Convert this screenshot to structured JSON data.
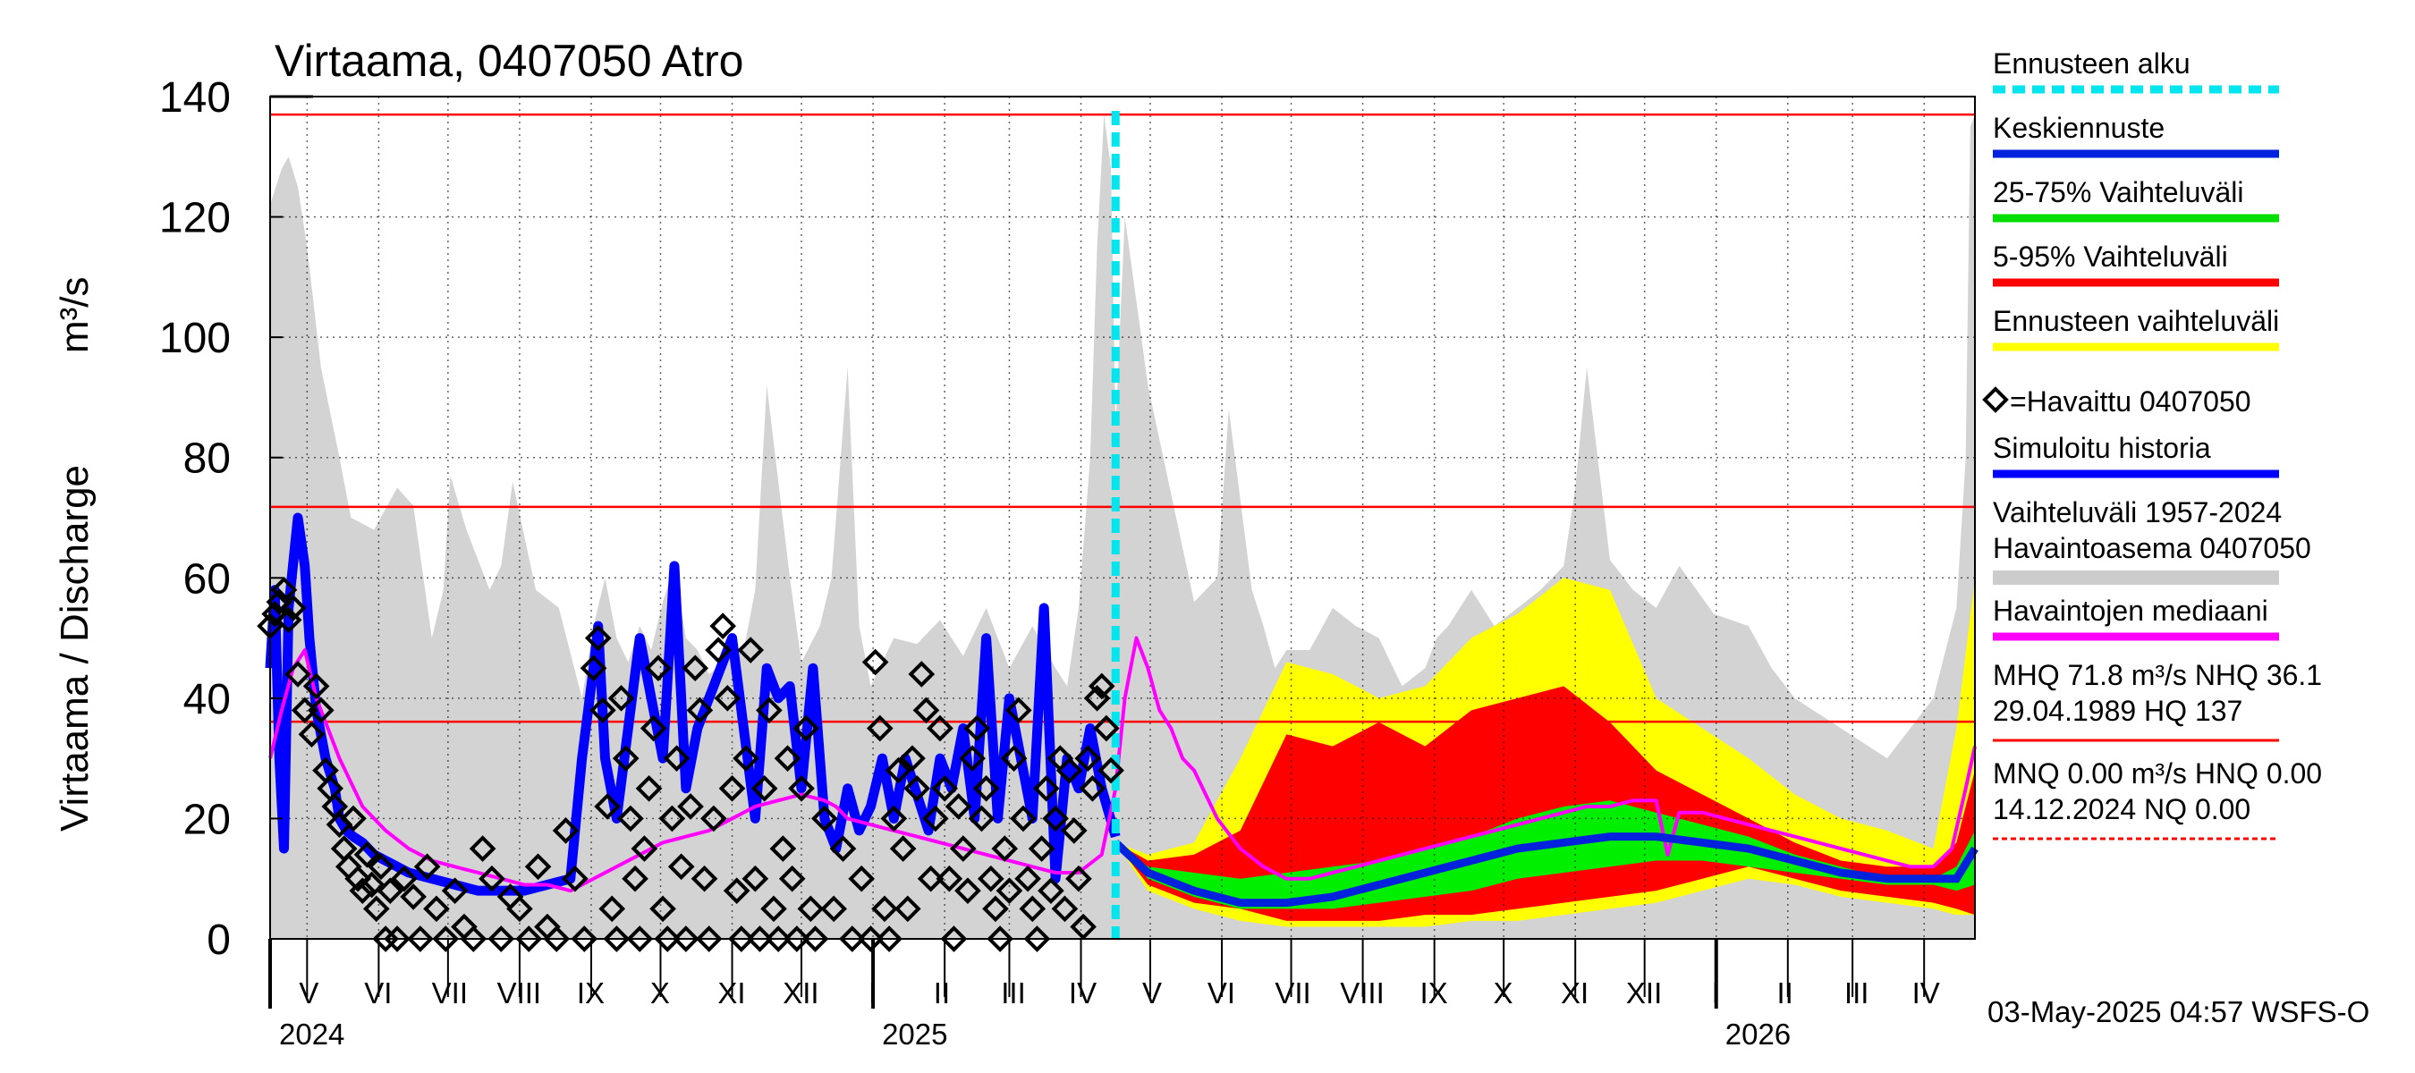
{
  "chart_data": {
    "type": "area",
    "title": "Virtaama, 0407050 Atro",
    "ylabel": "Virtaama / Discharge",
    "yunit": "m³/s",
    "ylim": [
      0,
      140
    ],
    "yticks": [
      "0",
      "20",
      "40",
      "60",
      "80",
      "100",
      "120",
      "140"
    ],
    "xlim_days": [
      0,
      738
    ],
    "x_unit": "days since 2024-04-15",
    "month_labels": [
      {
        "label": "V",
        "day": 16
      },
      {
        "label": "VI",
        "day": 46
      },
      {
        "label": "VII",
        "day": 77
      },
      {
        "label": "VIII",
        "day": 107
      },
      {
        "label": "IX",
        "day": 138
      },
      {
        "label": "X",
        "day": 168
      },
      {
        "label": "XI",
        "day": 199
      },
      {
        "label": "XII",
        "day": 229
      },
      {
        "label": "I",
        "day": 260
      },
      {
        "label": "II",
        "day": 290
      },
      {
        "label": "III",
        "day": 321
      },
      {
        "label": "IV",
        "day": 351
      },
      {
        "label": "V",
        "day": 381
      },
      {
        "label": "VI",
        "day": 411
      },
      {
        "label": "VII",
        "day": 442
      },
      {
        "label": "VIII",
        "day": 472
      },
      {
        "label": "IX",
        "day": 503
      },
      {
        "label": "X",
        "day": 533
      },
      {
        "label": "XI",
        "day": 564
      },
      {
        "label": "XII",
        "day": 594
      },
      {
        "label": "I",
        "day": 625
      },
      {
        "label": "II",
        "day": 655
      },
      {
        "label": "III",
        "day": 686
      },
      {
        "label": "IV",
        "day": 716
      }
    ],
    "month_boundaries": [
      16,
      47,
      77,
      108,
      139,
      169,
      200,
      230,
      261,
      292,
      320,
      351,
      381,
      412,
      442,
      473,
      504,
      534,
      565,
      595,
      626,
      657,
      685,
      716
    ],
    "year_labels": [
      {
        "label": "2024",
        "day": 0
      },
      {
        "label": "2025",
        "day": 261
      },
      {
        "label": "2026",
        "day": 626
      }
    ],
    "forecast_start_day": 366,
    "reference_lines": {
      "HQ": 137,
      "MHQ": 71.8,
      "NHQ": 36.1,
      "HNQ": 0.0
    },
    "historic_range_max": {
      "x": [
        0,
        5,
        8,
        12,
        16,
        22,
        30,
        35,
        45,
        55,
        62,
        70,
        75,
        78,
        85,
        95,
        100,
        105,
        115,
        125,
        135,
        140,
        145,
        150,
        155,
        160,
        165,
        170,
        175,
        180,
        185,
        190,
        200,
        205,
        210,
        215,
        225,
        230,
        238,
        243,
        250,
        255,
        260,
        270,
        280,
        290,
        300,
        310,
        320,
        330,
        340,
        345,
        350,
        355,
        358,
        361,
        364,
        366,
        370,
        380,
        390,
        400,
        410,
        415,
        425,
        430,
        435,
        440,
        450,
        460,
        470,
        480,
        490,
        500,
        505,
        510,
        520,
        530,
        540,
        550,
        560,
        565,
        570,
        580,
        590,
        600,
        610,
        625,
        640,
        650,
        660,
        680,
        700,
        720,
        730,
        734,
        736,
        738
      ],
      "y": [
        122,
        128,
        130,
        125,
        115,
        95,
        80,
        70,
        68,
        75,
        72,
        50,
        58,
        77,
        68,
        58,
        62,
        76,
        58,
        55,
        40,
        52,
        60,
        50,
        46,
        52,
        48,
        56,
        62,
        50,
        48,
        44,
        47,
        48,
        58,
        92,
        60,
        46,
        52,
        60,
        95,
        52,
        42,
        50,
        49,
        53,
        47,
        55,
        45,
        52,
        45,
        42,
        55,
        80,
        115,
        137,
        128,
        85,
        120,
        92,
        74,
        56,
        60,
        88,
        58,
        52,
        45,
        48,
        48,
        55,
        52,
        50,
        42,
        45,
        50,
        52,
        58,
        52,
        55,
        58,
        62,
        75,
        95,
        63,
        58,
        55,
        62,
        54,
        52,
        45,
        40,
        35,
        30,
        40,
        55,
        80,
        135,
        137
      ],
      "min": 0
    },
    "series": [
      {
        "name": "Simuloitu historia",
        "color": "#0000ff",
        "x": [
          0,
          2,
          4,
          6,
          8,
          12,
          15,
          17,
          20,
          24,
          28,
          30,
          33,
          36,
          40,
          45,
          50,
          55,
          60,
          70,
          80,
          90,
          100,
          110,
          120,
          130,
          135,
          140,
          142,
          145,
          150,
          155,
          160,
          165,
          170,
          175,
          180,
          185,
          190,
          195,
          200,
          205,
          210,
          215,
          220,
          225,
          230,
          235,
          240,
          245,
          250,
          255,
          260,
          265,
          270,
          275,
          280,
          285,
          290,
          295,
          300,
          305,
          310,
          315,
          320,
          325,
          330,
          335,
          340,
          345,
          350,
          355,
          360,
          366
        ],
        "y": [
          45,
          58,
          30,
          15,
          55,
          70,
          62,
          50,
          38,
          30,
          25,
          20,
          18,
          17,
          16,
          14,
          13,
          12,
          11,
          10,
          9,
          8,
          8,
          8,
          9,
          10,
          30,
          45,
          52,
          30,
          20,
          35,
          50,
          40,
          30,
          62,
          25,
          35,
          40,
          45,
          50,
          35,
          20,
          45,
          40,
          42,
          25,
          45,
          20,
          15,
          25,
          18,
          22,
          30,
          20,
          30,
          24,
          18,
          30,
          25,
          35,
          20,
          50,
          20,
          40,
          30,
          20,
          55,
          10,
          30,
          25,
          35,
          25,
          17
        ]
      },
      {
        "name": "Havaintojen mediaani",
        "color": "#ff00ff",
        "x": [
          0,
          5,
          10,
          15,
          20,
          30,
          40,
          50,
          60,
          70,
          80,
          90,
          100,
          110,
          120,
          130,
          140,
          150,
          160,
          170,
          180,
          190,
          200,
          210,
          220,
          230,
          240,
          245,
          250,
          260,
          270,
          280,
          290,
          300,
          310,
          320,
          330,
          340,
          350,
          360,
          366,
          370,
          375,
          380,
          385,
          390,
          395,
          400,
          410,
          420,
          430,
          440,
          450,
          460,
          470,
          480,
          490,
          500,
          510,
          520,
          530,
          540,
          550,
          560,
          570,
          580,
          590,
          600,
          605,
          610,
          620,
          630,
          640,
          650,
          660,
          670,
          680,
          690,
          700,
          710,
          720,
          728,
          734,
          738
        ],
        "y": [
          30,
          38,
          45,
          48,
          40,
          30,
          22,
          18,
          15,
          13,
          12,
          11,
          10,
          9,
          9,
          8,
          10,
          12,
          14,
          16,
          17,
          18,
          20,
          22,
          23,
          24,
          23,
          22,
          20,
          19,
          18,
          17,
          16,
          15,
          14,
          13,
          12,
          11,
          11,
          14,
          25,
          40,
          50,
          45,
          38,
          35,
          30,
          28,
          20,
          15,
          12,
          10,
          10,
          11,
          12,
          13,
          14,
          15,
          16,
          17,
          18,
          19,
          20,
          21,
          22,
          22,
          23,
          23,
          14,
          21,
          21,
          20,
          19,
          18,
          17,
          16,
          15,
          14,
          13,
          12,
          12,
          15,
          25,
          32
        ]
      }
    ],
    "forecast_bands": {
      "x": [
        366,
        380,
        400,
        420,
        440,
        460,
        480,
        500,
        520,
        540,
        560,
        580,
        600,
        620,
        640,
        660,
        680,
        700,
        720,
        730,
        738
      ],
      "ennuste_max": [
        16,
        14,
        16,
        30,
        46,
        44,
        40,
        42,
        50,
        54,
        60,
        58,
        40,
        35,
        30,
        24,
        20,
        18,
        15,
        35,
        60
      ],
      "ennuste_min": [
        16,
        8,
        5,
        3,
        2,
        2,
        2,
        2,
        3,
        3,
        4,
        5,
        6,
        8,
        10,
        9,
        7,
        6,
        5,
        4,
        4
      ],
      "p95": [
        16,
        13,
        14,
        18,
        34,
        32,
        36,
        32,
        38,
        40,
        42,
        36,
        28,
        24,
        20,
        16,
        13,
        12,
        12,
        16,
        28
      ],
      "p5": [
        16,
        9,
        6,
        5,
        3,
        3,
        3,
        4,
        4,
        5,
        6,
        7,
        8,
        10,
        12,
        10,
        8,
        7,
        6,
        5,
        4
      ],
      "p75": [
        16,
        12,
        11,
        10,
        11,
        12,
        13,
        15,
        17,
        20,
        22,
        23,
        21,
        19,
        17,
        14,
        12,
        10,
        10,
        12,
        18
      ],
      "p25": [
        16,
        10,
        7,
        5,
        5,
        5,
        6,
        7,
        8,
        10,
        11,
        12,
        13,
        13,
        12,
        11,
        10,
        9,
        9,
        8,
        9
      ],
      "keskiennuste": [
        16,
        11,
        8,
        6,
        6,
        7,
        9,
        11,
        13,
        15,
        16,
        17,
        17,
        16,
        15,
        13,
        11,
        10,
        10,
        10,
        15
      ]
    },
    "observations": [
      [
        0,
        52
      ],
      [
        2,
        54
      ],
      [
        4,
        56
      ],
      [
        6,
        58
      ],
      [
        8,
        53
      ],
      [
        10,
        55
      ],
      [
        12,
        44
      ],
      [
        15,
        38
      ],
      [
        18,
        34
      ],
      [
        20,
        42
      ],
      [
        22,
        38
      ],
      [
        24,
        28
      ],
      [
        26,
        25
      ],
      [
        28,
        22
      ],
      [
        30,
        19
      ],
      [
        32,
        15
      ],
      [
        34,
        12
      ],
      [
        36,
        20
      ],
      [
        38,
        10
      ],
      [
        40,
        8
      ],
      [
        42,
        14
      ],
      [
        44,
        9
      ],
      [
        46,
        5
      ],
      [
        48,
        12
      ],
      [
        50,
        0
      ],
      [
        52,
        8
      ],
      [
        55,
        0
      ],
      [
        58,
        10
      ],
      [
        62,
        7
      ],
      [
        65,
        0
      ],
      [
        68,
        12
      ],
      [
        72,
        5
      ],
      [
        76,
        0
      ],
      [
        80,
        8
      ],
      [
        84,
        2
      ],
      [
        88,
        0
      ],
      [
        92,
        15
      ],
      [
        96,
        10
      ],
      [
        100,
        0
      ],
      [
        104,
        7
      ],
      [
        108,
        5
      ],
      [
        112,
        0
      ],
      [
        116,
        12
      ],
      [
        120,
        2
      ],
      [
        124,
        0
      ],
      [
        128,
        18
      ],
      [
        132,
        10
      ],
      [
        136,
        0
      ],
      [
        140,
        45
      ],
      [
        142,
        50
      ],
      [
        144,
        38
      ],
      [
        146,
        22
      ],
      [
        148,
        5
      ],
      [
        150,
        0
      ],
      [
        152,
        40
      ],
      [
        154,
        30
      ],
      [
        156,
        20
      ],
      [
        158,
        10
      ],
      [
        160,
        0
      ],
      [
        162,
        15
      ],
      [
        164,
        25
      ],
      [
        166,
        35
      ],
      [
        168,
        45
      ],
      [
        170,
        5
      ],
      [
        172,
        0
      ],
      [
        174,
        20
      ],
      [
        176,
        30
      ],
      [
        178,
        12
      ],
      [
        180,
        0
      ],
      [
        182,
        22
      ],
      [
        184,
        45
      ],
      [
        186,
        38
      ],
      [
        188,
        10
      ],
      [
        190,
        0
      ],
      [
        192,
        20
      ],
      [
        194,
        48
      ],
      [
        196,
        52
      ],
      [
        198,
        40
      ],
      [
        200,
        25
      ],
      [
        202,
        8
      ],
      [
        204,
        0
      ],
      [
        206,
        30
      ],
      [
        208,
        48
      ],
      [
        210,
        10
      ],
      [
        212,
        0
      ],
      [
        214,
        25
      ],
      [
        216,
        38
      ],
      [
        218,
        5
      ],
      [
        220,
        0
      ],
      [
        222,
        15
      ],
      [
        224,
        30
      ],
      [
        226,
        10
      ],
      [
        228,
        0
      ],
      [
        230,
        25
      ],
      [
        232,
        35
      ],
      [
        234,
        5
      ],
      [
        236,
        0
      ],
      [
        240,
        20
      ],
      [
        244,
        5
      ],
      [
        248,
        15
      ],
      [
        252,
        0
      ],
      [
        256,
        10
      ],
      [
        260,
        0
      ],
      [
        262,
        46
      ],
      [
        264,
        35
      ],
      [
        266,
        5
      ],
      [
        268,
        0
      ],
      [
        270,
        20
      ],
      [
        272,
        28
      ],
      [
        274,
        15
      ],
      [
        276,
        5
      ],
      [
        278,
        30
      ],
      [
        280,
        25
      ],
      [
        282,
        44
      ],
      [
        284,
        38
      ],
      [
        286,
        10
      ],
      [
        288,
        20
      ],
      [
        290,
        35
      ],
      [
        292,
        25
      ],
      [
        294,
        10
      ],
      [
        296,
        0
      ],
      [
        298,
        22
      ],
      [
        300,
        15
      ],
      [
        302,
        8
      ],
      [
        304,
        30
      ],
      [
        306,
        35
      ],
      [
        308,
        20
      ],
      [
        310,
        25
      ],
      [
        312,
        10
      ],
      [
        314,
        5
      ],
      [
        316,
        0
      ],
      [
        318,
        15
      ],
      [
        320,
        8
      ],
      [
        322,
        30
      ],
      [
        324,
        38
      ],
      [
        326,
        20
      ],
      [
        328,
        10
      ],
      [
        330,
        5
      ],
      [
        332,
        0
      ],
      [
        334,
        15
      ],
      [
        336,
        25
      ],
      [
        338,
        8
      ],
      [
        340,
        20
      ],
      [
        342,
        30
      ],
      [
        344,
        5
      ],
      [
        346,
        28
      ],
      [
        348,
        18
      ],
      [
        350,
        10
      ],
      [
        352,
        2
      ],
      [
        354,
        30
      ],
      [
        356,
        25
      ],
      [
        358,
        40
      ],
      [
        360,
        42
      ],
      [
        362,
        35
      ],
      [
        364,
        28
      ]
    ],
    "legend": [
      {
        "label": "Ennusteen alku",
        "style": "dashed",
        "color": "#00e5ee"
      },
      {
        "label": "Keskiennuste",
        "style": "line",
        "color": "#0022dd"
      },
      {
        "label": "25-75% Vaihteluväli",
        "style": "line",
        "color": "#00dd00"
      },
      {
        "label": "5-95% Vaihteluväli",
        "style": "line",
        "color": "#ff0000"
      },
      {
        "label": "Ennusteen vaihteluväli",
        "style": "line",
        "color": "#ffff00"
      },
      {
        "label": "=Havaittu 0407050",
        "style": "marker",
        "color": "#000000"
      },
      {
        "label": "Simuloitu historia",
        "style": "line",
        "color": "#0000ff"
      },
      {
        "label": "Vaihteluväli 1957-2024",
        "label2": " Havaintoasema 0407050",
        "style": "line",
        "color": "#cccccc"
      },
      {
        "label": "Havaintojen mediaani",
        "style": "line",
        "color": "#ff00ff"
      },
      {
        "label": "MHQ 71.8 m³/s NHQ 36.1",
        "label2": "29.04.1989 HQ  137",
        "style": "line",
        "color": "#ff0000"
      },
      {
        "label": "MNQ 0.00 m³/s HNQ 0.00",
        "label2": "14.12.2024 NQ 0.00",
        "style": "dashed",
        "color": "#ff0000"
      }
    ],
    "footer": "03-May-2025 04:57 WSFS-O"
  }
}
